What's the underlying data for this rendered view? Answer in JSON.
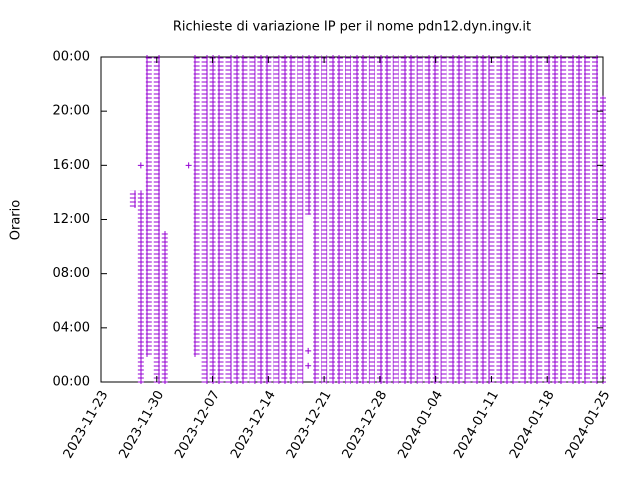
{
  "chart_data": {
    "type": "range",
    "title": "Richieste di variazione IP per il nome pdn12.dyn.ingv.it",
    "ylabel": "Orario",
    "color": "#9400d3",
    "x": [
      "2023-11-27",
      "2023-11-28",
      "2023-11-29",
      "2023-11-30",
      "2023-12-01",
      "2023-12-05",
      "2023-12-06",
      "2023-12-07",
      "2023-12-08",
      "2023-12-09",
      "2023-12-10",
      "2023-12-11",
      "2023-12-12",
      "2023-12-13",
      "2023-12-14",
      "2023-12-15",
      "2023-12-16",
      "2023-12-17",
      "2023-12-18",
      "2023-12-19",
      "2023-12-20",
      "2023-12-21",
      "2023-12-22",
      "2023-12-23",
      "2023-12-24",
      "2023-12-25",
      "2023-12-26",
      "2023-12-27",
      "2023-12-28",
      "2023-12-29",
      "2023-12-30",
      "2023-12-31",
      "2024-01-01",
      "2024-01-02",
      "2024-01-03",
      "2024-01-04",
      "2024-01-05",
      "2024-01-06",
      "2024-01-07",
      "2024-01-08",
      "2024-01-09",
      "2024-01-10",
      "2024-01-11",
      "2024-01-12",
      "2024-01-13",
      "2024-01-14",
      "2024-01-15",
      "2024-01-16",
      "2024-01-17",
      "2024-01-18",
      "2024-01-19",
      "2024-01-20",
      "2024-01-21",
      "2024-01-22",
      "2024-01-23",
      "2024-01-24",
      "2024-01-25"
    ],
    "start": [
      13,
      0,
      2,
      0,
      0,
      2,
      0,
      0,
      0,
      0,
      0,
      0,
      0,
      0,
      0,
      0,
      0,
      0,
      0,
      12.5,
      0,
      0,
      0,
      0,
      0,
      0,
      0,
      0,
      0,
      0,
      0,
      0,
      0,
      0,
      0,
      0,
      0,
      0,
      0,
      0,
      0,
      0,
      0,
      0,
      0,
      0,
      0,
      0,
      0,
      0,
      0,
      0,
      0,
      0,
      0,
      0,
      0
    ],
    "end": [
      14,
      14,
      24,
      24,
      11,
      24,
      24,
      24,
      24,
      24,
      24,
      24,
      24,
      24,
      24,
      24,
      24,
      24,
      24,
      24,
      24,
      24,
      24,
      24,
      24,
      24,
      24,
      24,
      24,
      24,
      24,
      24,
      24,
      24,
      24,
      24,
      24,
      24,
      24,
      24,
      24,
      24,
      24,
      24,
      24,
      24,
      24,
      24,
      24,
      24,
      24,
      24,
      24,
      24,
      24,
      24,
      21
    ],
    "points": {
      "x": [
        "2023-11-28",
        "2023-12-04",
        "2023-12-19",
        "2023-12-19"
      ],
      "y": [
        16,
        16,
        2.3,
        1.2
      ]
    },
    "xlim": [
      "2023-11-23",
      "2024-01-25"
    ],
    "xticks": [
      "2023-11-23",
      "2023-11-30",
      "2023-12-07",
      "2023-12-14",
      "2023-12-21",
      "2023-12-28",
      "2024-01-04",
      "2024-01-11",
      "2024-01-18",
      "2024-01-25"
    ],
    "ylim": [
      0,
      24
    ],
    "yticks": [
      {
        "value": 0,
        "label": "00:00"
      },
      {
        "value": 4,
        "label": "04:00"
      },
      {
        "value": 8,
        "label": "08:00"
      },
      {
        "value": 12,
        "label": "12:00"
      },
      {
        "value": 16,
        "label": "16:00"
      },
      {
        "value": 20,
        "label": "20:00"
      },
      {
        "value": 24,
        "label": "00:00"
      }
    ]
  }
}
